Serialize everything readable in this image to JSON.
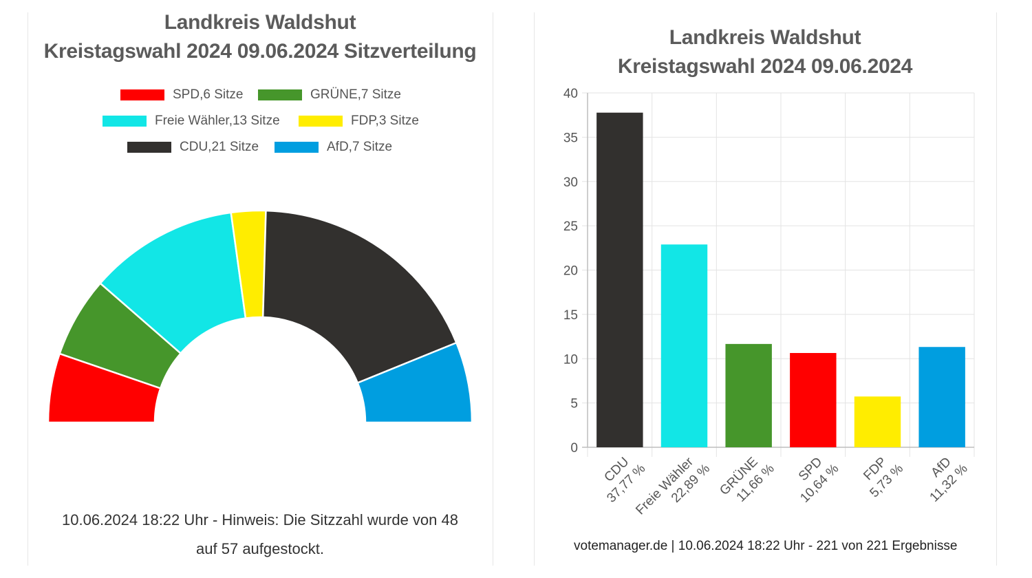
{
  "left_panel": {
    "title_line1": "Landkreis Waldshut",
    "title_line2": "Kreistagswahl 2024 09.06.2024 Sitzverteilung",
    "note_line1": "10.06.2024 18:22 Uhr - Hinweis: Die Sitzzahl wurde von 48",
    "note_line2": "auf 57 aufgestockt."
  },
  "right_panel": {
    "title_line1": "Landkreis Waldshut",
    "title_line2": "Kreistagswahl 2024 09.06.2024",
    "footer": "votemanager.de | 10.06.2024 18:22 Uhr - 221 von 221 Ergebnisse"
  },
  "chart_data": [
    {
      "type": "pie",
      "variant": "half-donut",
      "title": "Landkreis Waldshut Kreistagswahl 2024 09.06.2024 Sitzverteilung",
      "legend_position": "top",
      "legend": [
        {
          "label": "SPD,6 Sitze",
          "color": "#ff0000"
        },
        {
          "label": "GRÜNE,7 Sitze",
          "color": "#46962b"
        },
        {
          "label": "Freie Wähler,13 Sitze",
          "color": "#12e6e6"
        },
        {
          "label": "FDP,3 Sitze",
          "color": "#ffed00"
        },
        {
          "label": "CDU,21 Sitze",
          "color": "#32302e"
        },
        {
          "label": "AfD,7 Sitze",
          "color": "#009ee0"
        }
      ],
      "slices": [
        {
          "name": "SPD",
          "value": 6,
          "color": "#ff0000"
        },
        {
          "name": "GRÜNE",
          "value": 7,
          "color": "#46962b"
        },
        {
          "name": "Freie Wähler",
          "value": 13,
          "color": "#12e6e6"
        },
        {
          "name": "FDP",
          "value": 3,
          "color": "#ffed00"
        },
        {
          "name": "CDU",
          "value": 21,
          "color": "#32302e"
        },
        {
          "name": "AfD",
          "value": 7,
          "color": "#009ee0"
        }
      ],
      "total": 57
    },
    {
      "type": "bar",
      "title": "Landkreis Waldshut Kreistagswahl 2024 09.06.2024",
      "categories": [
        "CDU",
        "Freie Wähler",
        "GRÜNE",
        "SPD",
        "FDP",
        "AfD"
      ],
      "category_sublabels": [
        "37,77 %",
        "22,89 %",
        "11,66 %",
        "10,64 %",
        "5,73 %",
        "11,32 %"
      ],
      "values": [
        37.77,
        22.89,
        11.66,
        10.64,
        5.73,
        11.32
      ],
      "colors": [
        "#32302e",
        "#12e6e6",
        "#46962b",
        "#ff0000",
        "#ffed00",
        "#009ee0"
      ],
      "ylim": [
        0,
        40
      ],
      "yticks": [
        "0",
        "5",
        "10",
        "15",
        "20",
        "25",
        "30",
        "35",
        "40"
      ],
      "grid": true
    }
  ]
}
